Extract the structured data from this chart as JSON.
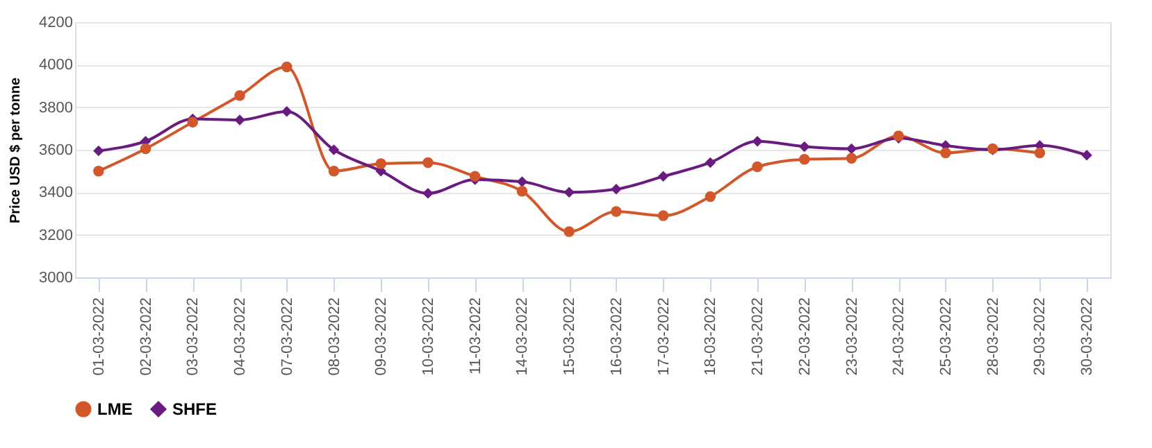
{
  "chart_data": {
    "type": "line",
    "ylabel": "Price USD $ per tonne",
    "categories": [
      "01-03-2022",
      "02-03-2022",
      "03-03-2022",
      "04-03-2022",
      "07-03-2022",
      "08-03-2022",
      "09-03-2022",
      "10-03-2022",
      "11-03-2022",
      "14-03-2022",
      "15-03-2022",
      "16-03-2022",
      "17-03-2022",
      "18-03-2022",
      "21-03-2022",
      "22-03-2022",
      "23-03-2022",
      "24-03-2022",
      "25-03-2022",
      "28-03-2022",
      "29-03-2022",
      "30-03-2022"
    ],
    "series": [
      {
        "name": "LME",
        "color": "#d2572a",
        "marker": "circle",
        "values": [
          3500,
          3605,
          3730,
          3855,
          3990,
          3500,
          3535,
          3540,
          3475,
          3405,
          3215,
          3310,
          3290,
          3380,
          3520,
          3555,
          3560,
          3665,
          3585,
          3605,
          3585,
          null
        ]
      },
      {
        "name": "SHFE",
        "color": "#6a1b7f",
        "marker": "diamond",
        "values": [
          3595,
          3640,
          3745,
          3740,
          3780,
          3600,
          3500,
          3395,
          3460,
          3450,
          3400,
          3415,
          3475,
          3540,
          3640,
          3615,
          3605,
          3655,
          3620,
          3600,
          3620,
          3575
        ]
      }
    ],
    "ylim": [
      3000,
      4200
    ],
    "yticks": [
      3000,
      3200,
      3400,
      3600,
      3800,
      4000,
      4200
    ],
    "grid": "y",
    "legend": "bottom"
  }
}
